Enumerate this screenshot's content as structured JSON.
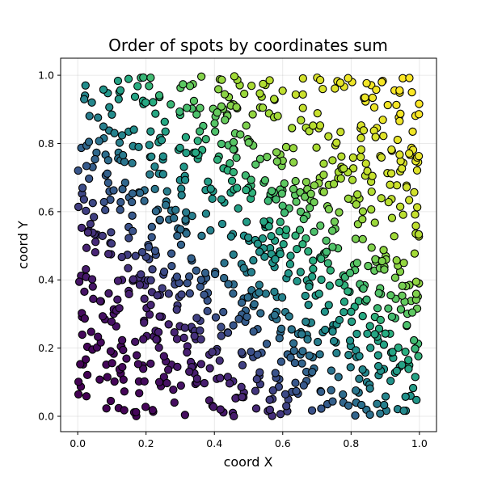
{
  "chart_data": {
    "type": "scatter",
    "title": "Order of spots by coordinates sum",
    "xlabel": "coord X",
    "ylabel": "coord Y",
    "xlim": [
      -0.05,
      1.05
    ],
    "ylim": [
      -0.045,
      1.05
    ],
    "xticks": [
      0.0,
      0.2,
      0.4,
      0.6,
      0.8,
      1.0
    ],
    "yticks": [
      0.0,
      0.2,
      0.4,
      0.6,
      0.8,
      1.0
    ],
    "xtick_labels": [
      "0.0",
      "0.2",
      "0.4",
      "0.6",
      "0.8",
      "1.0"
    ],
    "ytick_labels": [
      "0.0",
      "0.2",
      "0.4",
      "0.6",
      "0.8",
      "1.0"
    ],
    "grid": true,
    "colormap": "viridis",
    "color_by": "order of x + y",
    "marker_edge_color": "#000000",
    "n_points": 1000,
    "x_distribution": "uniform",
    "x_range": [
      0.0,
      1.0
    ],
    "y_distribution": "uniform",
    "y_range": [
      0.0,
      1.0
    ]
  }
}
